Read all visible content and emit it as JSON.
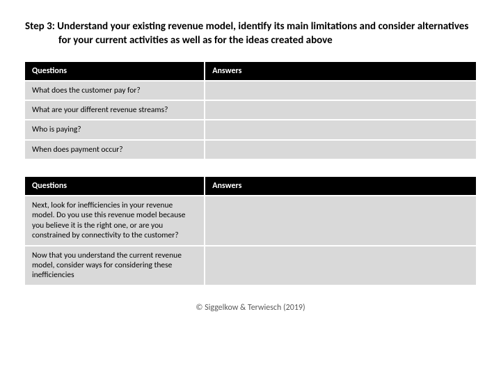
{
  "title": {
    "step_label": "Step 3:",
    "text": "Understand your existing revenue model, identify its main limitations and consider alternatives for your current activities as well as for the ideas created above"
  },
  "table1": {
    "header_questions": "Questions",
    "header_answers": "Answers",
    "rows": [
      {
        "q": "What does the customer pay for?",
        "a": ""
      },
      {
        "q": "What are your different revenue streams?",
        "a": ""
      },
      {
        "q": "Who is paying?",
        "a": ""
      },
      {
        "q": "When does payment occur?",
        "a": ""
      }
    ]
  },
  "table2": {
    "header_questions": "Questions",
    "header_answers": "Answers",
    "rows": [
      {
        "q": "Next, look for inefficiencies in your revenue model. Do you use this revenue model because you believe it is the right one, or are you constrained by connectivity to the customer?",
        "a": ""
      },
      {
        "q": "Now that you understand the current revenue model, consider ways for considering these inefficiencies",
        "a": ""
      }
    ]
  },
  "footer": "© Siggelkow & Terwiesch (2019)",
  "colors": {
    "header_bg": "#000000",
    "header_fg": "#ffffff",
    "row_bg": "#d9d9d9",
    "page_bg": "#ffffff",
    "footer_fg": "#595959"
  }
}
